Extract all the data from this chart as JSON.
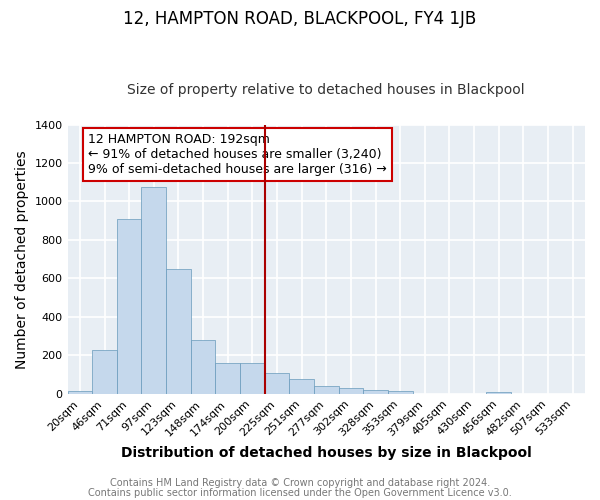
{
  "title": "12, HAMPTON ROAD, BLACKPOOL, FY4 1JB",
  "subtitle": "Size of property relative to detached houses in Blackpool",
  "xlabel": "Distribution of detached houses by size in Blackpool",
  "ylabel": "Number of detached properties",
  "bin_labels": [
    "20sqm",
    "46sqm",
    "71sqm",
    "97sqm",
    "123sqm",
    "148sqm",
    "174sqm",
    "200sqm",
    "225sqm",
    "251sqm",
    "277sqm",
    "302sqm",
    "328sqm",
    "353sqm",
    "379sqm",
    "405sqm",
    "430sqm",
    "456sqm",
    "482sqm",
    "507sqm",
    "533sqm"
  ],
  "bar_values": [
    15,
    230,
    910,
    1075,
    650,
    280,
    160,
    160,
    110,
    75,
    40,
    30,
    20,
    15,
    0,
    0,
    0,
    10,
    0,
    0,
    0
  ],
  "bar_color": "#c5d8ec",
  "bar_edge_color": "#6699bb",
  "vline_color": "#aa0000",
  "annotation_title": "12 HAMPTON ROAD: 192sqm",
  "annotation_line1": "← 91% of detached houses are smaller (3,240)",
  "annotation_line2": "9% of semi-detached houses are larger (316) →",
  "annotation_box_color": "#ffffff",
  "annotation_box_edge": "#cc0000",
  "ylim": [
    0,
    1400
  ],
  "yticks": [
    0,
    200,
    400,
    600,
    800,
    1000,
    1200,
    1400
  ],
  "footer1": "Contains HM Land Registry data © Crown copyright and database right 2024.",
  "footer2": "Contains public sector information licensed under the Open Government Licence v3.0.",
  "bg_color": "#ffffff",
  "plot_bg_color": "#e8eef4",
  "grid_color": "#ffffff",
  "title_fontsize": 12,
  "subtitle_fontsize": 10,
  "axis_label_fontsize": 10,
  "tick_fontsize": 8,
  "footer_fontsize": 7,
  "annotation_fontsize": 9
}
